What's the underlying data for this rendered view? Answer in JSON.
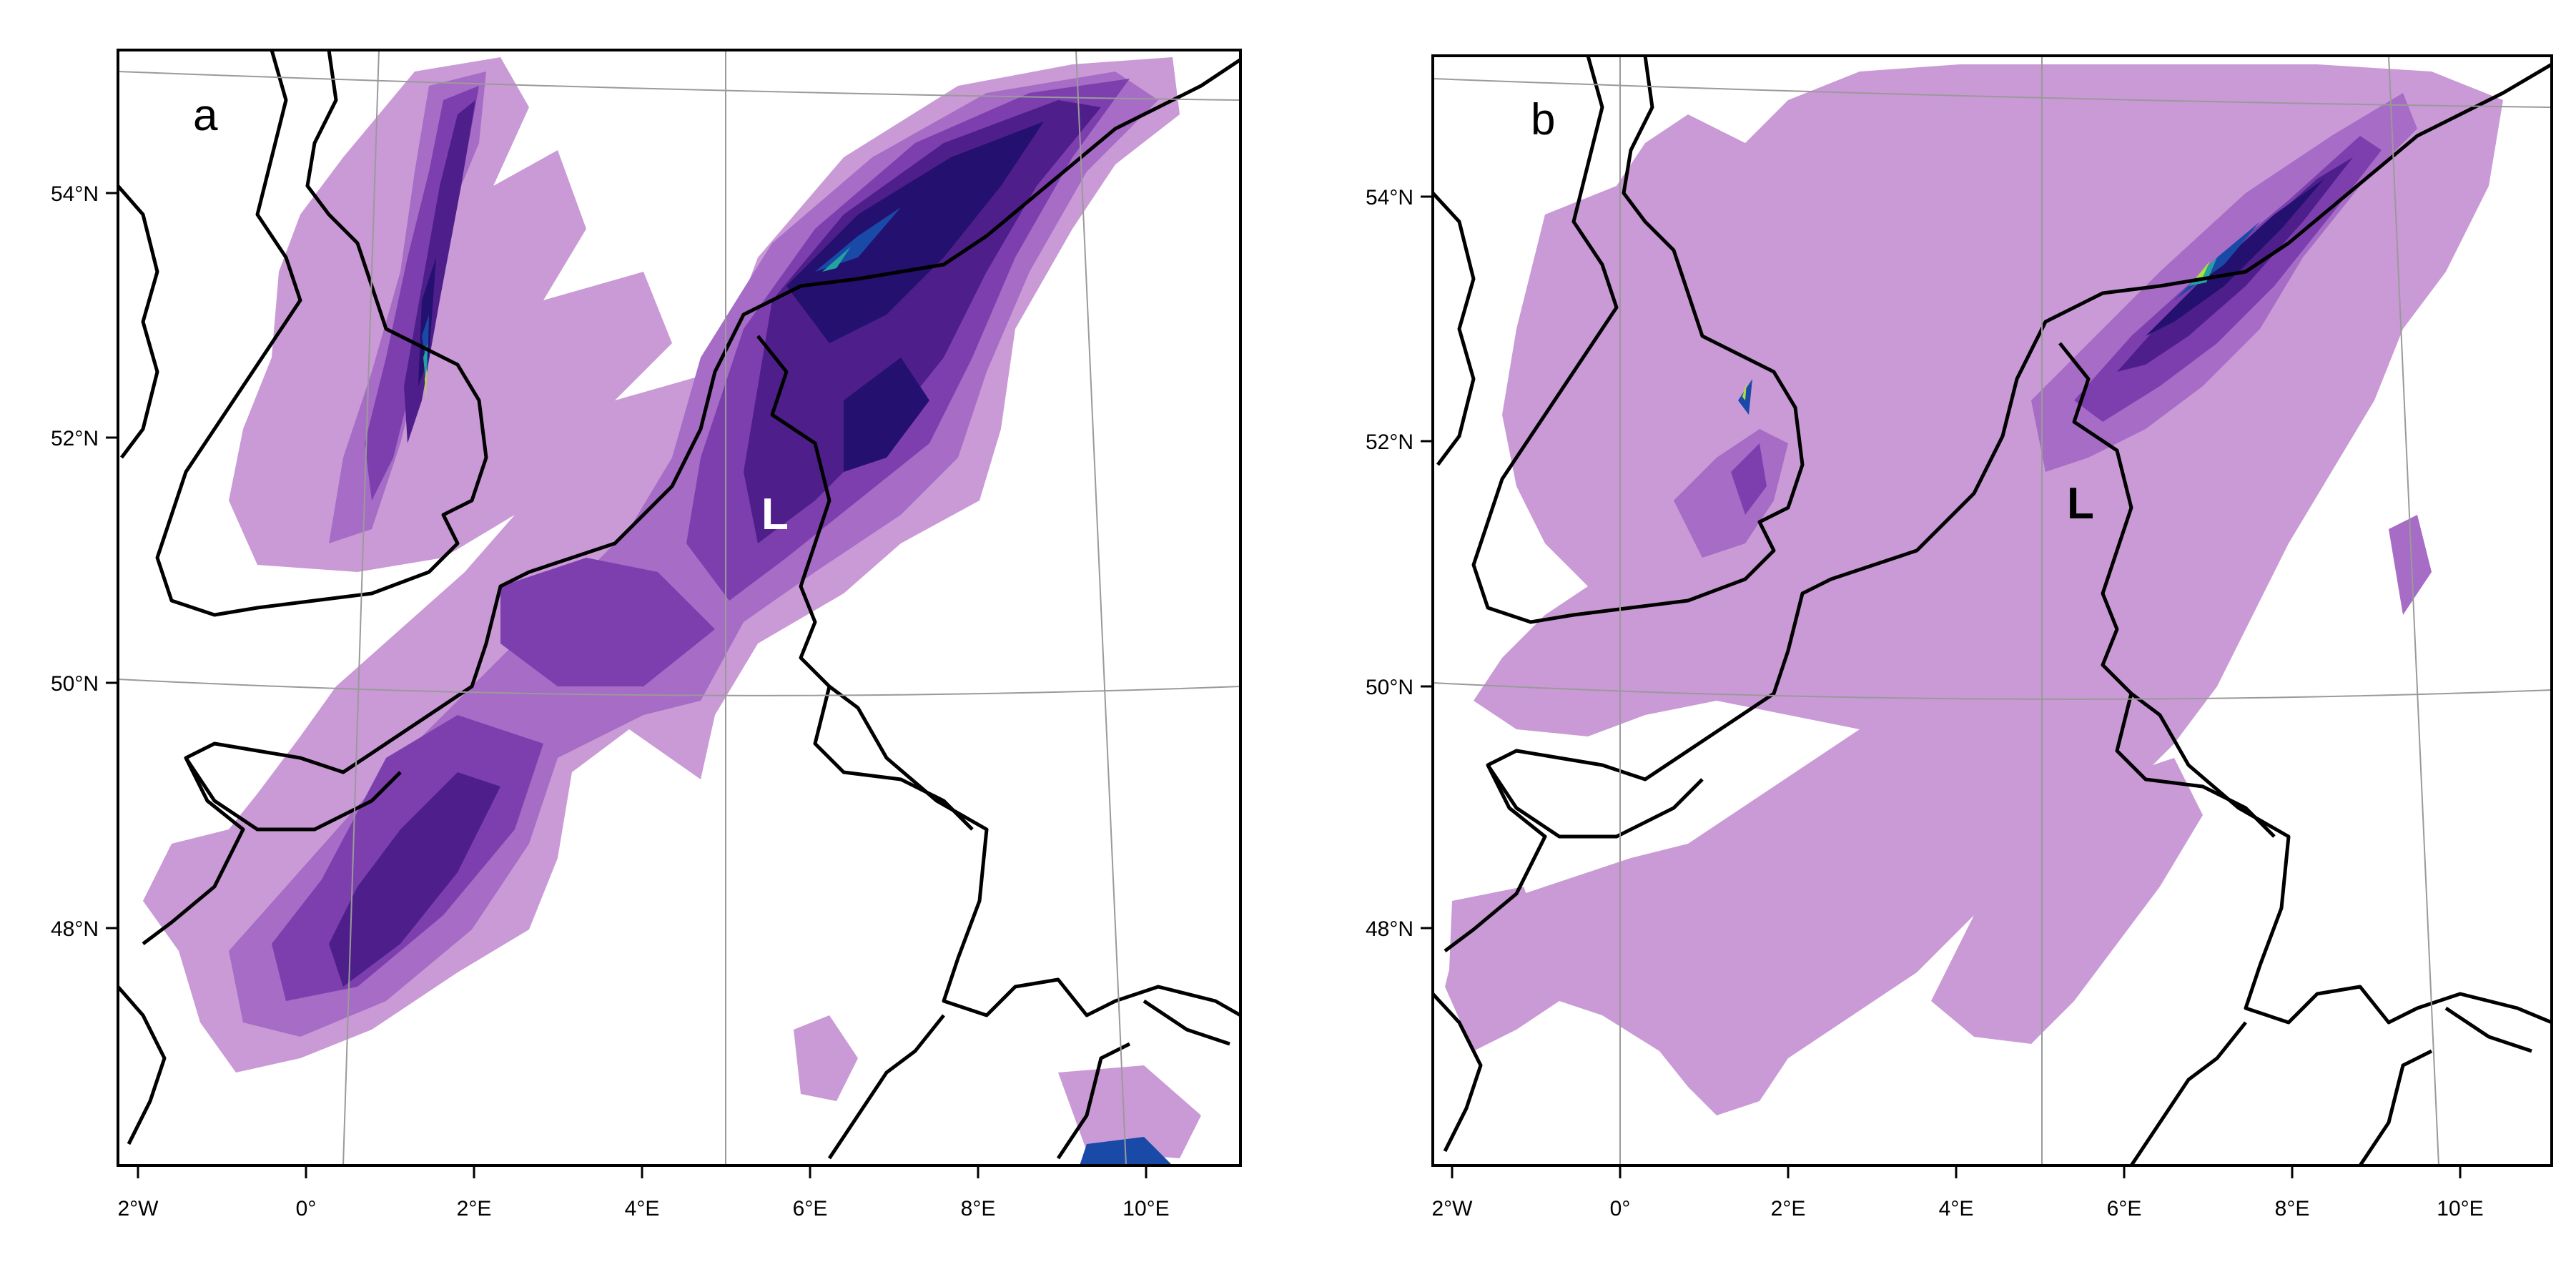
{
  "panels": [
    {
      "id": "a",
      "label": "a",
      "low_marker": "L",
      "low_marker_color": "#ffffff",
      "x_ticks": [
        "2°W",
        "0°",
        "2°E",
        "4°E",
        "6°E",
        "8°E",
        "10°E"
      ],
      "y_ticks": [
        "48°N",
        "50°N",
        "52°N",
        "54°N"
      ]
    },
    {
      "id": "b",
      "label": "b",
      "low_marker": "L",
      "low_marker_color": "#000000",
      "x_ticks": [
        "2°W",
        "0°",
        "2°E",
        "4°E",
        "6°E",
        "8°E",
        "10°E"
      ],
      "y_ticks": [
        "48°N",
        "50°N",
        "52°N",
        "54°N"
      ]
    }
  ],
  "colors": {
    "level_1": "#c99ad6",
    "level_2": "#a66cc6",
    "level_3": "#7d3fae",
    "level_4": "#4e1f8a",
    "level_5": "#24106e",
    "level_6": "#1a4aa8",
    "level_7": "#23a3a0",
    "level_8": "#a8e23a",
    "coastline": "#000000",
    "graticule": "#9a9a9a"
  }
}
